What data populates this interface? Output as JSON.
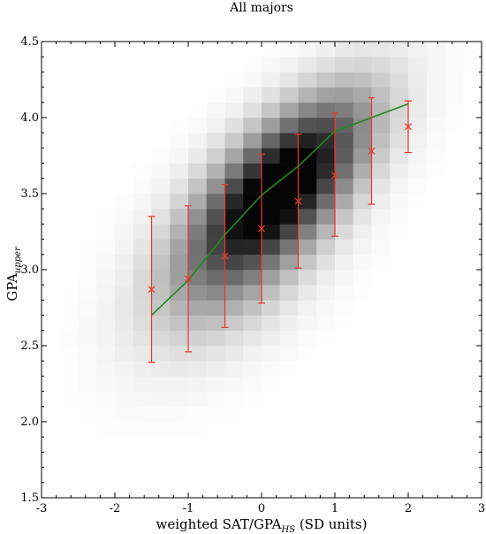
{
  "chart_data": {
    "type": "heatmap",
    "title": "All majors",
    "xlabel": {
      "main": "weighted SAT/GPA",
      "sub": "HS",
      "suffix": " (SD units)"
    },
    "ylabel": {
      "main": "GPA",
      "sub": "upper"
    },
    "xlim": [
      -3,
      3
    ],
    "ylim": [
      1.5,
      4.5
    ],
    "xticks": [
      "-3",
      "-2",
      "-1",
      "0",
      "1",
      "2",
      "3"
    ],
    "yticks": [
      "1.5",
      "2.0",
      "2.5",
      "3.0",
      "3.5",
      "4.0",
      "4.5"
    ],
    "grid": false,
    "series": [
      {
        "type": "line",
        "color": "#1f8a1f",
        "x": [
          -1.5,
          -1.0,
          -0.5,
          0.0,
          0.5,
          1.0,
          1.5,
          2.0
        ],
        "y": [
          2.7,
          2.93,
          3.23,
          3.49,
          3.68,
          3.91,
          4.0,
          4.09
        ]
      },
      {
        "type": "errorbar",
        "color": "#e8382a",
        "marker": "x",
        "x": [
          -1.5,
          -1.0,
          -0.5,
          0.0,
          0.5,
          1.0,
          1.5,
          2.0
        ],
        "y": [
          2.87,
          2.94,
          3.09,
          3.27,
          3.45,
          3.62,
          3.78,
          3.94
        ],
        "ylow": [
          2.39,
          2.46,
          2.62,
          2.78,
          3.01,
          3.22,
          3.43,
          3.77
        ],
        "yhigh": [
          3.35,
          3.42,
          3.56,
          3.76,
          3.89,
          4.03,
          4.13,
          4.11
        ]
      }
    ],
    "density": {
      "description_units": "grayscale heatmap of joint density, peak near x=0.4, y=3.6",
      "x_bin_width": 0.25,
      "y_bin_width": 0.1
    }
  }
}
